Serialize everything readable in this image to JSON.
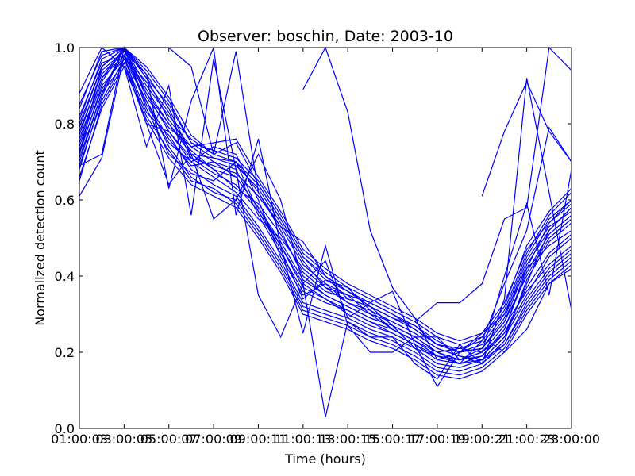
{
  "chart_data": {
    "type": "line",
    "title": "Observer: boschin, Date: 2003-10",
    "xlabel": "Time (hours)",
    "ylabel": "Normalized detection count",
    "x_tick_labels": [
      "01:00:03",
      "03:00:05",
      "05:00:07",
      "07:00:09",
      "09:00:11",
      "11:00:13",
      "13:00:15",
      "15:00:17",
      "17:00:19",
      "19:00:21",
      "21:00:23",
      "23:00:00"
    ],
    "x_tick_hours": [
      1,
      3,
      5,
      7,
      9,
      11,
      13,
      15,
      17,
      19,
      21,
      23
    ],
    "xlim": [
      1,
      23
    ],
    "ylim": [
      0,
      1
    ],
    "y_ticks": [
      "0.0",
      "0.2",
      "0.4",
      "0.6",
      "0.8",
      "1.0"
    ],
    "grid": false,
    "legend": "none",
    "line_color": "#0000ff",
    "x_hours": [
      1,
      2,
      3,
      4,
      5,
      6,
      7,
      8,
      9,
      10,
      11,
      12,
      13,
      14,
      15,
      16,
      17,
      18,
      19,
      20,
      21,
      22,
      23
    ],
    "series": [
      {
        "values": [
          0.8,
          0.95,
          1.0,
          0.92,
          0.85,
          0.75,
          0.71,
          0.7,
          0.62,
          0.52,
          0.4,
          0.35,
          0.32,
          0.29,
          0.27,
          0.24,
          0.2,
          0.17,
          0.18,
          0.22,
          0.32,
          0.4,
          0.45
        ]
      },
      {
        "values": [
          0.75,
          0.92,
          0.98,
          0.88,
          0.8,
          0.72,
          0.68,
          0.66,
          0.58,
          0.48,
          0.38,
          0.34,
          0.3,
          0.27,
          0.25,
          0.22,
          0.19,
          0.18,
          0.21,
          0.28,
          0.4,
          0.5,
          0.55
        ]
      },
      {
        "values": [
          0.7,
          0.88,
          1.0,
          0.85,
          0.75,
          0.7,
          0.74,
          0.72,
          0.6,
          0.45,
          0.35,
          0.38,
          0.35,
          0.3,
          0.26,
          0.23,
          0.2,
          0.21,
          0.2,
          0.25,
          0.35,
          0.45,
          0.5
        ]
      },
      {
        "values": [
          0.65,
          0.85,
          0.96,
          0.8,
          0.78,
          0.7,
          0.66,
          0.62,
          0.55,
          0.5,
          0.42,
          0.37,
          0.33,
          0.31,
          0.28,
          0.25,
          0.21,
          0.19,
          0.18,
          0.24,
          0.38,
          0.52,
          0.58
        ]
      },
      {
        "values": [
          0.85,
          0.98,
          1.0,
          0.9,
          0.82,
          0.76,
          0.72,
          0.75,
          0.64,
          0.55,
          0.45,
          0.4,
          0.36,
          0.33,
          0.3,
          0.26,
          0.22,
          0.2,
          0.22,
          0.3,
          0.45,
          0.55,
          0.6
        ]
      },
      {
        "values": [
          0.72,
          0.9,
          0.97,
          0.86,
          0.76,
          0.69,
          0.7,
          0.68,
          0.56,
          0.46,
          0.36,
          0.33,
          0.31,
          0.28,
          0.25,
          0.22,
          0.18,
          0.17,
          0.19,
          0.26,
          0.42,
          0.48,
          0.52
        ]
      },
      {
        "values": [
          0.78,
          0.93,
          0.99,
          0.89,
          0.8,
          0.73,
          0.68,
          0.63,
          0.59,
          0.51,
          0.41,
          0.36,
          0.34,
          0.32,
          0.29,
          0.27,
          0.23,
          0.2,
          0.21,
          0.29,
          0.44,
          0.53,
          0.57
        ]
      },
      {
        "values": [
          0.68,
          0.87,
          1.0,
          0.84,
          0.72,
          0.67,
          0.65,
          0.7,
          0.57,
          0.47,
          0.34,
          0.39,
          0.37,
          0.31,
          0.26,
          0.23,
          0.19,
          0.18,
          0.2,
          0.27,
          0.36,
          0.43,
          0.48
        ]
      },
      {
        "values": [
          0.82,
          0.96,
          0.98,
          0.91,
          0.83,
          0.71,
          0.69,
          0.67,
          0.61,
          0.53,
          0.43,
          0.38,
          0.33,
          0.3,
          0.28,
          0.25,
          0.21,
          0.19,
          0.17,
          0.23,
          0.39,
          0.49,
          0.54
        ]
      },
      {
        "values": [
          0.74,
          0.91,
          1.0,
          0.87,
          0.79,
          0.74,
          0.7,
          0.66,
          0.58,
          0.49,
          0.39,
          0.35,
          0.32,
          0.29,
          0.27,
          0.24,
          0.2,
          0.18,
          0.19,
          0.25,
          0.37,
          0.46,
          0.51
        ]
      },
      {
        "values": [
          0.77,
          0.94,
          0.99,
          0.93,
          0.84,
          0.72,
          0.71,
          0.69,
          0.63,
          0.54,
          0.44,
          0.37,
          0.35,
          0.33,
          0.3,
          0.27,
          0.22,
          0.21,
          0.23,
          0.31,
          0.46,
          0.56,
          0.62
        ]
      },
      {
        "values": [
          0.69,
          0.86,
          0.97,
          0.83,
          0.77,
          0.68,
          0.64,
          0.61,
          0.53,
          0.44,
          0.33,
          0.31,
          0.29,
          0.26,
          0.24,
          0.21,
          0.17,
          0.16,
          0.18,
          0.24,
          0.34,
          0.42,
          0.47
        ]
      },
      {
        "values": [
          0.79,
          0.95,
          1.0,
          0.94,
          0.86,
          0.75,
          0.73,
          0.71,
          0.65,
          0.56,
          0.46,
          0.41,
          0.37,
          0.34,
          0.31,
          0.28,
          0.24,
          0.22,
          0.24,
          0.32,
          0.48,
          0.57,
          0.63
        ]
      },
      {
        "values": [
          0.73,
          0.89,
          0.98,
          0.86,
          0.74,
          0.66,
          0.62,
          0.6,
          0.52,
          0.43,
          0.32,
          0.3,
          0.28,
          0.25,
          0.23,
          0.2,
          0.16,
          0.15,
          0.17,
          0.22,
          0.33,
          0.41,
          0.46
        ]
      },
      {
        "values": [
          0.81,
          0.97,
          1.0,
          0.92,
          0.81,
          0.74,
          0.75,
          0.76,
          0.66,
          0.57,
          0.47,
          0.42,
          0.38,
          0.35,
          0.32,
          0.29,
          0.25,
          0.23,
          0.25,
          0.33,
          0.47,
          0.54,
          0.59
        ]
      },
      {
        "values": [
          0.71,
          0.88,
          0.96,
          0.82,
          0.73,
          0.65,
          0.63,
          0.59,
          0.51,
          0.42,
          0.31,
          0.29,
          0.27,
          0.24,
          0.22,
          0.19,
          0.15,
          0.14,
          0.16,
          0.21,
          0.31,
          0.39,
          0.44
        ]
      },
      {
        "values": [
          0.76,
          0.92,
          1.0,
          0.88,
          0.78,
          0.71,
          0.67,
          0.64,
          0.57,
          0.48,
          0.37,
          0.34,
          0.31,
          0.28,
          0.26,
          0.23,
          0.19,
          0.17,
          0.19,
          0.26,
          0.41,
          0.51,
          0.56
        ]
      },
      {
        "values": [
          0.84,
          0.99,
          1.0,
          0.95,
          0.87,
          0.77,
          0.72,
          0.7,
          0.64,
          0.55,
          0.45,
          0.39,
          0.36,
          0.32,
          0.29,
          0.26,
          0.22,
          0.2,
          0.21,
          0.28,
          0.43,
          0.52,
          0.58
        ]
      },
      {
        "values": [
          0.66,
          0.84,
          0.95,
          0.81,
          0.71,
          0.64,
          0.61,
          0.58,
          0.5,
          0.41,
          0.3,
          0.28,
          0.26,
          0.23,
          0.21,
          0.18,
          0.14,
          0.13,
          0.15,
          0.2,
          0.3,
          0.38,
          0.43
        ]
      },
      {
        "values": [
          0.61,
          0.71,
          0.98,
          0.8,
          0.64,
          0.72,
          0.55,
          0.6,
          0.72,
          0.6,
          0.38,
          0.44,
          0.29,
          0.33,
          0.36,
          0.22,
          0.11,
          0.2,
          0.24,
          0.2,
          0.26,
          0.38,
          0.42
        ]
      },
      {
        "values": [
          0.88,
          1.0,
          0.95,
          0.74,
          0.9,
          0.56,
          0.97,
          0.68,
          0.35,
          0.24,
          0.38,
          0.03,
          0.28,
          0.24,
          0.24,
          0.17,
          0.13,
          0.22,
          0.17,
          0.34,
          0.92,
          0.62,
          0.31
        ]
      },
      {
        "values": [
          0.69,
          0.72,
          1.0,
          0.93,
          0.63,
          0.86,
          1.0,
          0.56,
          0.76,
          0.48,
          0.25,
          0.48,
          0.27,
          0.2,
          0.2,
          0.24,
          0.24,
          0.18,
          0.2,
          0.4,
          0.59,
          0.35,
          0.68
        ]
      },
      {
        "values": [
          null,
          null,
          null,
          null,
          null,
          null,
          null,
          null,
          null,
          null,
          0.89,
          1.0,
          0.83,
          0.52,
          0.37,
          0.29,
          0.18,
          0.2,
          0.25,
          0.3,
          0.42,
          0.54,
          0.6
        ]
      },
      {
        "values": [
          null,
          null,
          null,
          null,
          null,
          null,
          null,
          null,
          null,
          null,
          null,
          null,
          null,
          null,
          null,
          null,
          null,
          null,
          0.61,
          0.78,
          0.91,
          0.78,
          0.7
        ]
      },
      {
        "values": [
          null,
          null,
          null,
          null,
          null,
          null,
          null,
          null,
          null,
          null,
          null,
          null,
          null,
          null,
          null,
          0.28,
          0.33,
          0.33,
          0.38,
          0.55,
          0.58,
          1.0,
          0.94
        ]
      },
      {
        "values": [
          0.72,
          0.95,
          1.0,
          1.0,
          1.0,
          0.95,
          0.72,
          0.99,
          0.62,
          0.53,
          0.49,
          0.4,
          0.34,
          0.32,
          0.27,
          0.21,
          0.19,
          0.17,
          0.23,
          0.38,
          0.52,
          0.79,
          0.7
        ]
      }
    ]
  }
}
